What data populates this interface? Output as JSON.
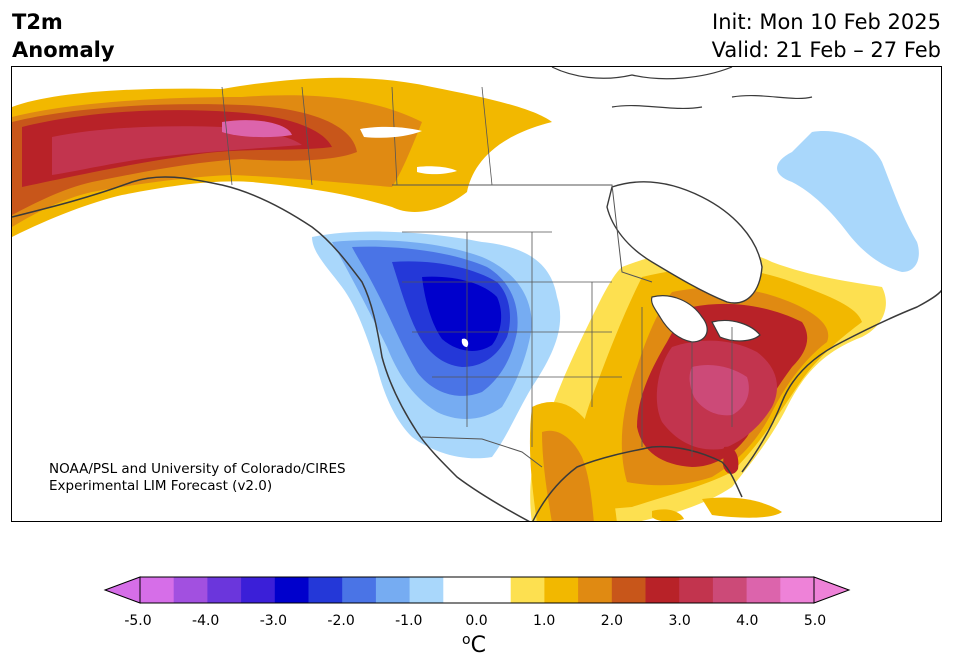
{
  "title": {
    "left_line1": "T2m",
    "left_line2": "Anomaly",
    "init": "Init: Mon 10 Feb 2025",
    "valid": "Valid: 21 Feb – 27 Feb"
  },
  "credit": {
    "line1": "NOAA/PSL and University of Colorado/CIRES",
    "line2": "Experimental LIM Forecast (v2.0)"
  },
  "colorbar": {
    "unit_symbol": "o",
    "unit_letter": "C",
    "ticks": [
      "-5.0",
      "-4.0",
      "-3.0",
      "-2.0",
      "-1.0",
      "0.0",
      "1.0",
      "2.0",
      "3.0",
      "4.0",
      "5.0"
    ],
    "colors": [
      "#d66ee8",
      "#a250e0",
      "#6b36dc",
      "#3b1fd8",
      "#0000cc",
      "#2438d8",
      "#4a74e6",
      "#76acf2",
      "#a9d7fb",
      "#ffffff",
      "#ffffff",
      "#fde050",
      "#f2b800",
      "#e08a12",
      "#c8561a",
      "#b82228",
      "#c2344e",
      "#cc4a78",
      "#dc64ac",
      "#ee82d8"
    ]
  }
}
